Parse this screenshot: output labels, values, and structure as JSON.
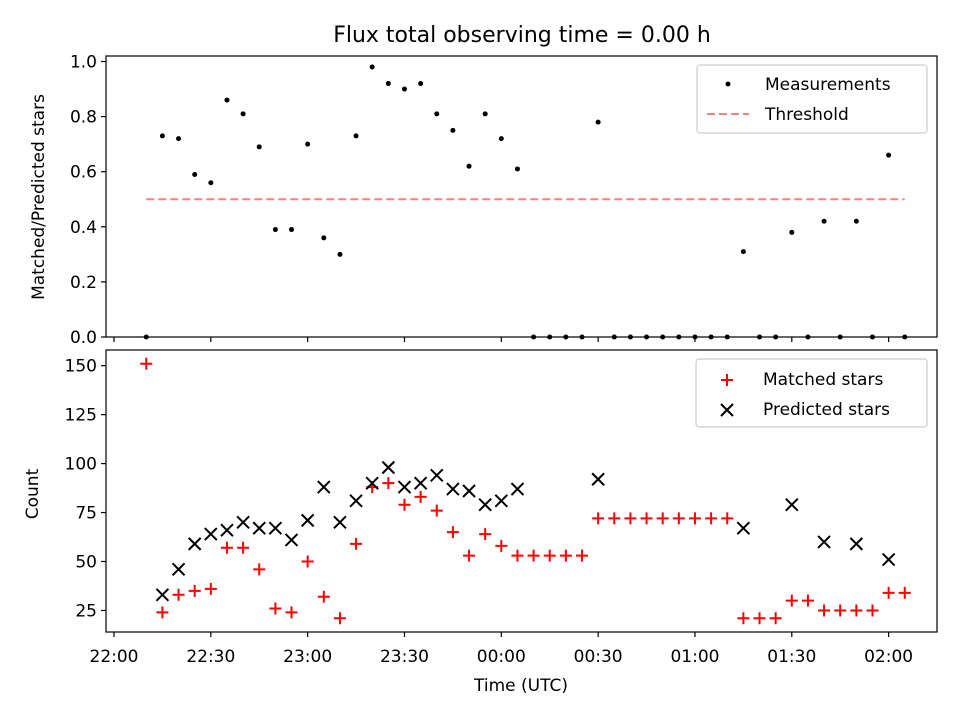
{
  "chart_data": [
    {
      "type": "scatter",
      "title": "Flux total observing time = 0.00 h",
      "ylabel": "Matched/Predicted stars",
      "xlabel": "",
      "ylim": [
        0.0,
        1.02
      ],
      "yticks": [
        0.0,
        0.2,
        0.4,
        0.6,
        0.8,
        1.0
      ],
      "ytick_labels": [
        "0.0",
        "0.2",
        "0.4",
        "0.6",
        "0.8",
        "1.0"
      ],
      "legend_position": "top-right",
      "grid": false,
      "series": [
        {
          "name": "Measurements",
          "marker": "dot",
          "color": "#000000",
          "x": [
            "22:10",
            "22:15",
            "22:20",
            "22:25",
            "22:30",
            "22:35",
            "22:40",
            "22:45",
            "22:50",
            "22:55",
            "23:00",
            "23:05",
            "23:10",
            "23:15",
            "23:20",
            "23:25",
            "23:30",
            "23:35",
            "23:40",
            "23:45",
            "23:50",
            "23:55",
            "00:00",
            "00:05",
            "00:10",
            "00:15",
            "00:20",
            "00:25",
            "00:30",
            "00:35",
            "00:40",
            "00:45",
            "00:50",
            "00:55",
            "01:00",
            "01:05",
            "01:10",
            "01:15",
            "01:20",
            "01:25",
            "01:30",
            "01:35",
            "01:40",
            "01:45",
            "01:50",
            "01:55",
            "02:00",
            "02:05"
          ],
          "y": [
            0.0,
            0.73,
            0.72,
            0.59,
            0.56,
            0.86,
            0.81,
            0.69,
            0.39,
            0.39,
            0.7,
            0.36,
            0.3,
            0.73,
            0.98,
            0.92,
            0.9,
            0.92,
            0.81,
            0.75,
            0.62,
            0.81,
            0.72,
            0.61,
            0.0,
            0.0,
            0.0,
            0.0,
            0.78,
            0.0,
            0.0,
            0.0,
            0.0,
            0.0,
            0.0,
            0.0,
            0.0,
            0.31,
            0.0,
            0.0,
            0.38,
            0.0,
            0.42,
            0.0,
            0.42,
            0.0,
            0.66,
            0.0
          ]
        },
        {
          "name": "Threshold",
          "style": "dashed",
          "color": "#ff7f7f",
          "x": [
            "22:10",
            "02:05"
          ],
          "y": [
            0.5,
            0.5
          ]
        }
      ]
    },
    {
      "type": "scatter",
      "title": "",
      "ylabel": "Count",
      "xlabel": "Time (UTC)",
      "ylim": [
        14,
        158
      ],
      "yticks": [
        25,
        50,
        75,
        100,
        125,
        150
      ],
      "ytick_labels": [
        "25",
        "50",
        "75",
        "100",
        "125",
        "150"
      ],
      "xticks": [
        "22:00",
        "22:30",
        "23:00",
        "23:30",
        "00:00",
        "00:30",
        "01:00",
        "01:30",
        "02:00"
      ],
      "legend_position": "top-right",
      "grid": false,
      "series": [
        {
          "name": "Matched stars",
          "marker": "plus",
          "color": "#ff0000",
          "x": [
            "22:10",
            "22:15",
            "22:20",
            "22:25",
            "22:30",
            "22:35",
            "22:40",
            "22:45",
            "22:50",
            "22:55",
            "23:00",
            "23:05",
            "23:10",
            "23:15",
            "23:20",
            "23:25",
            "23:30",
            "23:35",
            "23:40",
            "23:45",
            "23:50",
            "23:55",
            "00:00",
            "00:05",
            "00:10",
            "00:15",
            "00:20",
            "00:25",
            "00:30",
            "00:35",
            "00:40",
            "00:45",
            "00:50",
            "00:55",
            "01:00",
            "01:05",
            "01:10",
            "01:15",
            "01:20",
            "01:25",
            "01:30",
            "01:35",
            "01:40",
            "01:45",
            "01:50",
            "01:55",
            "02:00",
            "02:05"
          ],
          "y": [
            151,
            24,
            33,
            35,
            36,
            57,
            57,
            46,
            26,
            24,
            50,
            32,
            21,
            59,
            88,
            90,
            79,
            83,
            76,
            65,
            53,
            64,
            58,
            53,
            53,
            53,
            53,
            53,
            72,
            72,
            72,
            72,
            72,
            72,
            72,
            72,
            72,
            21,
            21,
            21,
            30,
            30,
            25,
            25,
            25,
            25,
            34,
            34
          ]
        },
        {
          "name": "Predicted stars",
          "marker": "x",
          "color": "#000000",
          "x": [
            "22:15",
            "22:20",
            "22:25",
            "22:30",
            "22:35",
            "22:40",
            "22:45",
            "22:50",
            "22:55",
            "23:00",
            "23:05",
            "23:10",
            "23:15",
            "23:20",
            "23:25",
            "23:30",
            "23:35",
            "23:40",
            "23:45",
            "23:50",
            "23:55",
            "00:00",
            "00:05",
            "00:30",
            "01:15",
            "01:30",
            "01:40",
            "01:50",
            "02:00"
          ],
          "y": [
            33,
            46,
            59,
            64,
            66,
            70,
            67,
            67,
            61,
            71,
            88,
            70,
            81,
            90,
            98,
            88,
            90,
            94,
            87,
            86,
            79,
            81,
            87,
            92,
            67,
            79,
            60,
            59,
            51
          ]
        }
      ]
    }
  ]
}
